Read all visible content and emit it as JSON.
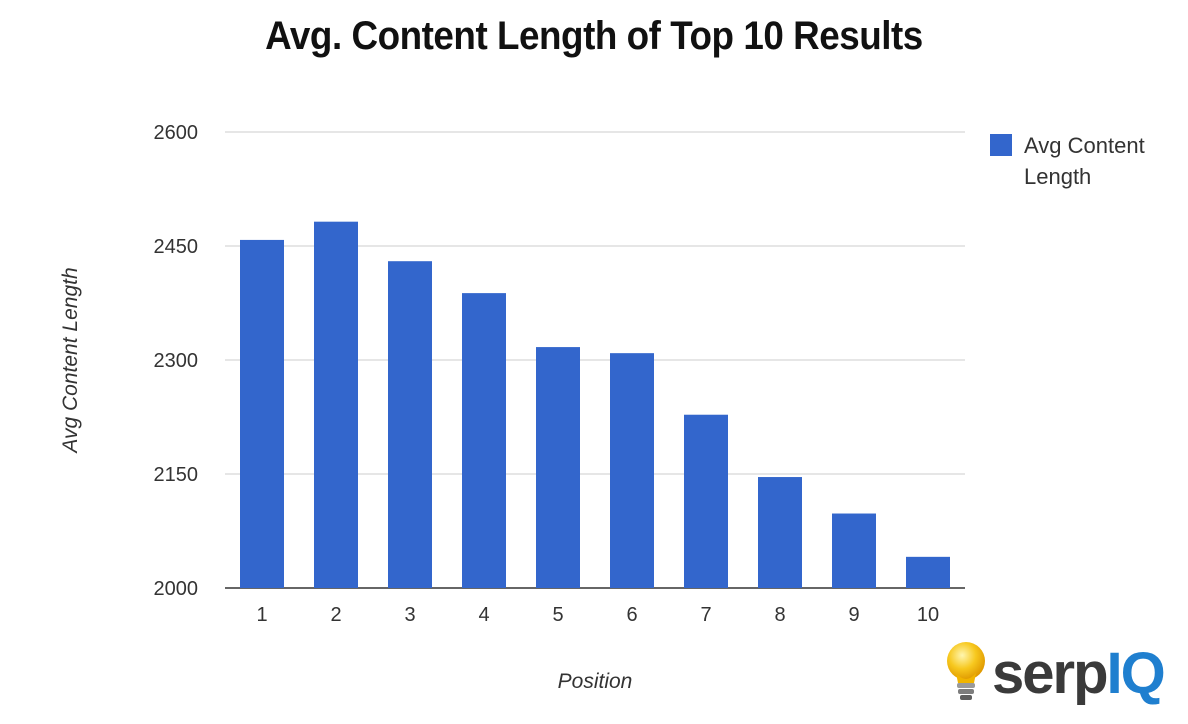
{
  "chart_data": {
    "type": "bar",
    "title": "Avg. Content Length of Top 10 Results",
    "xlabel": "Position",
    "ylabel": "Avg Content Length",
    "categories": [
      "1",
      "2",
      "3",
      "4",
      "5",
      "6",
      "7",
      "8",
      "9",
      "10"
    ],
    "series": [
      {
        "name": "Avg Content Length",
        "values": [
          2458,
          2482,
          2430,
          2388,
          2317,
          2309,
          2228,
          2146,
          2098,
          2041
        ]
      }
    ],
    "ylim": [
      2000,
      2600
    ],
    "yticks": [
      2000,
      2150,
      2300,
      2450,
      2600
    ],
    "grid": true,
    "legend_position": "right",
    "bar_color": "#3366cc"
  },
  "branding": {
    "logo": {
      "serp": "serp",
      "iq": "IQ",
      "icon": "lightbulb-icon"
    }
  }
}
